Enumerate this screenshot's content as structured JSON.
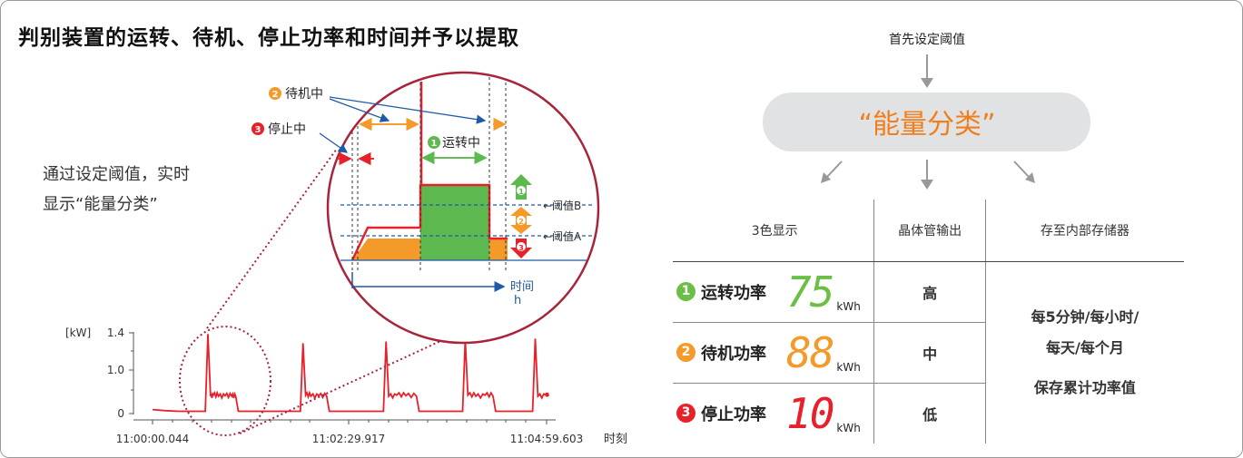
{
  "title": "判别装置的运转、待机、停止功率和时间并予以提取",
  "left": {
    "description_lines": [
      "通过设定阈值，实时",
      "显示“能量分类”"
    ],
    "zoom_labels": {
      "standby": "待机中",
      "stopped": "停止中",
      "running": "运转中",
      "threshold_b": "←阈值B",
      "threshold_a": "←阈值A",
      "time_axis": "时间",
      "h": "h",
      "badge_1": "1",
      "badge_2": "2",
      "badge_3": "3"
    },
    "colors": {
      "running": "#5db94f",
      "standby": "#f39a2b",
      "stopped": "#e8202a",
      "circle": "#a8243a",
      "threshold": "#1f5aa6"
    }
  },
  "chart_data": {
    "type": "line",
    "ylabel": "[kW]",
    "xlabel": "时刻",
    "yticks": [
      "1.4",
      "1.0",
      "0"
    ],
    "ylim": [
      0,
      1.4
    ],
    "xticks": [
      "11:00:00.044",
      "11:02:29.917",
      "11:04:59.603"
    ],
    "series": [
      {
        "values": [
          [
            0,
            0.07
          ],
          [
            10,
            0.05
          ],
          [
            20,
            0.04
          ],
          [
            30,
            0.04
          ],
          [
            38,
            0.04
          ],
          [
            40,
            0.04
          ],
          [
            42,
            1.38
          ],
          [
            44,
            0.3
          ],
          [
            46,
            0.32
          ],
          [
            50,
            0.3
          ],
          [
            55,
            0.31
          ],
          [
            60,
            0.3
          ],
          [
            63,
            0.3
          ],
          [
            65,
            0.04
          ],
          [
            75,
            0.04
          ],
          [
            85,
            0.04
          ],
          [
            100,
            0.04
          ],
          [
            112,
            0.04
          ],
          [
            114,
            1.22
          ],
          [
            116,
            0.32
          ],
          [
            120,
            0.3
          ],
          [
            126,
            0.31
          ],
          [
            132,
            0.3
          ],
          [
            134,
            0.04
          ],
          [
            150,
            0.04
          ],
          [
            165,
            0.04
          ],
          [
            175,
            0.04
          ],
          [
            177,
            1.25
          ],
          [
            179,
            0.3
          ],
          [
            185,
            0.32
          ],
          [
            192,
            0.31
          ],
          [
            200,
            0.3
          ],
          [
            202,
            0.04
          ],
          [
            220,
            0.04
          ],
          [
            235,
            0.04
          ],
          [
            237,
            1.28
          ],
          [
            239,
            0.32
          ],
          [
            245,
            0.3
          ],
          [
            252,
            0.32
          ],
          [
            258,
            0.3
          ],
          [
            260,
            0.04
          ],
          [
            275,
            0.04
          ],
          [
            288,
            0.04
          ],
          [
            290,
            1.3
          ],
          [
            292,
            0.3
          ],
          [
            298,
            0.32
          ],
          [
            300,
            0.3
          ]
        ]
      }
    ]
  },
  "right": {
    "step": "首先设定阈值",
    "banner": "“能量分类”",
    "headers": [
      "3色显示",
      "晶体管输出",
      "存至内部存储器"
    ],
    "rows": [
      {
        "num": "1",
        "name": "运转功率",
        "digits": "75",
        "unit": "kWh",
        "output": "高",
        "color": "#6bbf45"
      },
      {
        "num": "2",
        "name": "待机功率",
        "digits": "88",
        "unit": "kWh",
        "output": "中",
        "color": "#f39a2b"
      },
      {
        "num": "3",
        "name": "停止功率",
        "digits": "10",
        "unit": "kWh",
        "output": "低",
        "color": "#e8202a"
      }
    ],
    "storage_lines": [
      "每5分钟/每小时/",
      "每天/每个月",
      "保存累计功率值"
    ]
  }
}
